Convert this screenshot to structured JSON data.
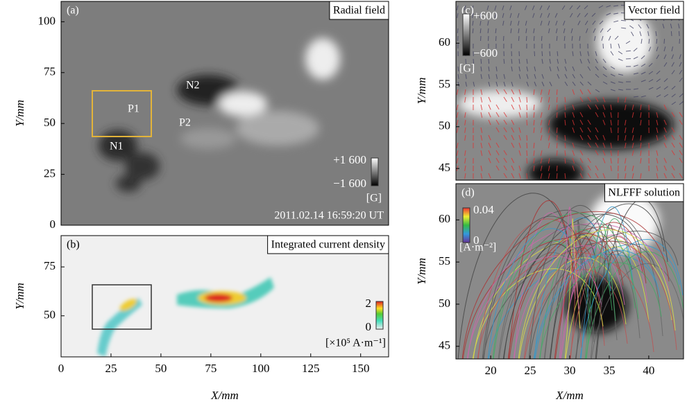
{
  "panels": [
    {
      "label": "(a)",
      "title": "Radial field",
      "ylabel": "Y/mm",
      "ylim": [
        0,
        110
      ],
      "yticks": [
        0,
        25,
        50,
        75,
        100
      ],
      "annotations": [
        "N2",
        "P1",
        "P2",
        "N1"
      ],
      "colorbar": {
        "max": "+1 600",
        "min": "−1 600",
        "unit": "[G]"
      },
      "timestamp": "2011.02.14 16:59:20 UT"
    },
    {
      "label": "(b)",
      "title": "Integrated current density",
      "xlabel": "X/mm",
      "ylabel": "Y/mm",
      "xlim": [
        0,
        164
      ],
      "xticks": [
        0,
        25,
        50,
        75,
        100,
        125,
        150
      ],
      "ylim": [
        29,
        91
      ],
      "yticks": [
        50,
        75
      ],
      "colorbar": {
        "max": "2",
        "min": "0",
        "unit": "[×10⁵ A·m⁻¹]"
      }
    },
    {
      "label": "(c)",
      "title": "Vector field",
      "ylabel": "Y/mm",
      "ylim": [
        43.6,
        65
      ],
      "yticks": [
        45,
        50,
        55,
        60
      ],
      "colorbar": {
        "max": "+600",
        "min": "−600",
        "unit": "[G]"
      }
    },
    {
      "label": "(d)",
      "title": "NLFFF solution",
      "xlabel": "X/mm",
      "ylabel": "Y/mm",
      "xlim": [
        15.6,
        44.4
      ],
      "xticks": [
        20,
        25,
        30,
        35,
        40
      ],
      "ylim": [
        43.5,
        64.3
      ],
      "yticks": [
        45,
        50,
        55,
        60
      ],
      "colorbar": {
        "max": "0.04",
        "min": "0",
        "unit": "[A·m⁻²]"
      }
    }
  ]
}
